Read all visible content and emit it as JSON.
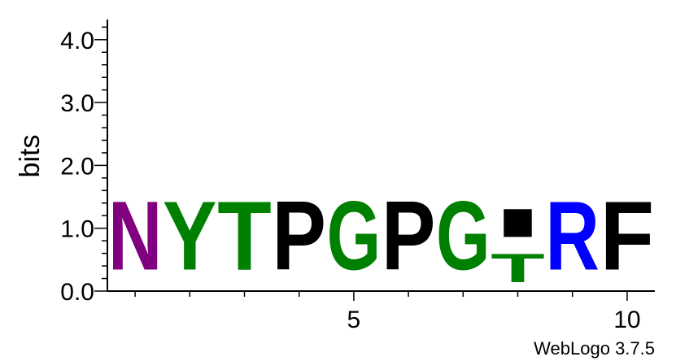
{
  "chart_data": {
    "type": "sequence-logo",
    "ylabel": "bits",
    "ylim": [
      0,
      4.32
    ],
    "y_ticks": [
      {
        "value": 0.0,
        "label": "0.0"
      },
      {
        "value": 1.0,
        "label": "1.0"
      },
      {
        "value": 2.0,
        "label": "2.0"
      },
      {
        "value": 3.0,
        "label": "3.0"
      },
      {
        "value": 4.0,
        "label": "4.0"
      }
    ],
    "x_ticks": [
      {
        "value": 5,
        "label": "5"
      },
      {
        "value": 10,
        "label": "10"
      }
    ],
    "positions": [
      {
        "pos": 1,
        "stack": [
          {
            "letter": "N",
            "bits": 1.75,
            "color": "#800080"
          }
        ]
      },
      {
        "pos": 2,
        "stack": [
          {
            "letter": "Y",
            "bits": 1.75,
            "color": "#008000"
          }
        ]
      },
      {
        "pos": 3,
        "stack": [
          {
            "letter": "T",
            "bits": 1.75,
            "color": "#008000"
          }
        ]
      },
      {
        "pos": 4,
        "stack": [
          {
            "letter": "P",
            "bits": 1.75,
            "color": "#000000"
          }
        ]
      },
      {
        "pos": 5,
        "stack": [
          {
            "letter": "G",
            "bits": 1.75,
            "color": "#008000"
          }
        ]
      },
      {
        "pos": 6,
        "stack": [
          {
            "letter": "P",
            "bits": 1.75,
            "color": "#000000"
          }
        ]
      },
      {
        "pos": 7,
        "stack": [
          {
            "letter": "G",
            "bits": 1.75,
            "color": "#008000"
          }
        ]
      },
      {
        "pos": 8,
        "stack": [
          {
            "letter": "T",
            "bits": 0.72,
            "color": "#008000"
          },
          {
            "letter": "I",
            "bits": 0.72,
            "color": "#000000"
          }
        ]
      },
      {
        "pos": 9,
        "stack": [
          {
            "letter": "R",
            "bits": 1.75,
            "color": "#0000ff"
          }
        ]
      },
      {
        "pos": 10,
        "stack": [
          {
            "letter": "F",
            "bits": 1.75,
            "color": "#000000"
          }
        ]
      }
    ],
    "credit": "WebLogo 3.7.5"
  }
}
